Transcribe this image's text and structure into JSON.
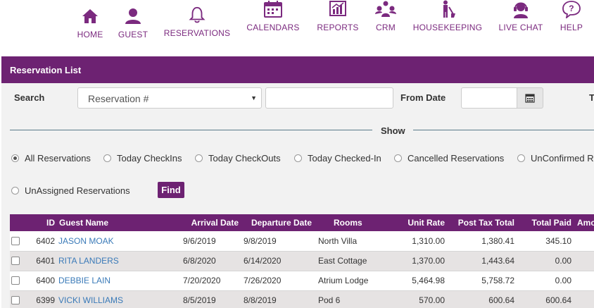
{
  "nav": {
    "items": [
      {
        "label": "HOME",
        "icon": "home-icon"
      },
      {
        "label": "GUEST",
        "icon": "user-icon"
      },
      {
        "label": "RESERVATIONS",
        "icon": "bell-icon"
      },
      {
        "label": "CALENDARS",
        "icon": "calendar-icon"
      },
      {
        "label": "REPORTS",
        "icon": "chart-icon"
      },
      {
        "label": "CRM",
        "icon": "crm-icon"
      },
      {
        "label": "HOUSEKEEPING",
        "icon": "housekeeping-icon"
      },
      {
        "label": "LIVE CHAT",
        "icon": "headset-icon"
      },
      {
        "label": "HELP",
        "icon": "help-icon"
      }
    ],
    "accent": "#7b2a7f"
  },
  "panel": {
    "title": "Reservation List",
    "color": "#6d2272"
  },
  "search": {
    "label": "Search",
    "select_value": "Reservation #",
    "from_date_label": "From Date",
    "to_label_cut": "T"
  },
  "show": {
    "label": "Show",
    "options": [
      {
        "label": "All Reservations",
        "selected": true
      },
      {
        "label": "Today CheckIns",
        "selected": false
      },
      {
        "label": "Today CheckOuts",
        "selected": false
      },
      {
        "label": "Today Checked-In",
        "selected": false
      },
      {
        "label": "Cancelled Reservations",
        "selected": false
      },
      {
        "label": "UnConfirmed R",
        "selected": false
      },
      {
        "label": "UnAssigned Reservations",
        "selected": false
      }
    ],
    "find_label": "Find"
  },
  "table": {
    "headers": [
      "ID",
      "Guest Name",
      "Arrival Date",
      "Departure Date",
      "Rooms",
      "Unit Rate",
      "Post Tax Total",
      "Total Paid",
      "Amo"
    ],
    "rows": [
      {
        "id": "6402",
        "guest": "JASON MOAK",
        "arrival": "9/6/2019",
        "departure": "9/8/2019",
        "rooms": "North Villa",
        "unit_rate": "1,310.00",
        "post_tax": "1,380.41",
        "paid": "345.10"
      },
      {
        "id": "6401",
        "guest": "RITA LANDERS",
        "arrival": "6/8/2020",
        "departure": "6/14/2020",
        "rooms": "East Cottage",
        "unit_rate": "1,370.00",
        "post_tax": "1,443.64",
        "paid": "0.00"
      },
      {
        "id": "6400",
        "guest": "DEBBIE LAIN",
        "arrival": "7/20/2020",
        "departure": "7/26/2020",
        "rooms": "Atrium Lodge",
        "unit_rate": "5,464.98",
        "post_tax": "5,758.72",
        "paid": "0.00"
      },
      {
        "id": "6399",
        "guest": "VICKI WILLIAMS",
        "arrival": "8/5/2019",
        "departure": "8/8/2019",
        "rooms": "Pod 6",
        "unit_rate": "570.00",
        "post_tax": "600.64",
        "paid": "600.64"
      }
    ]
  }
}
